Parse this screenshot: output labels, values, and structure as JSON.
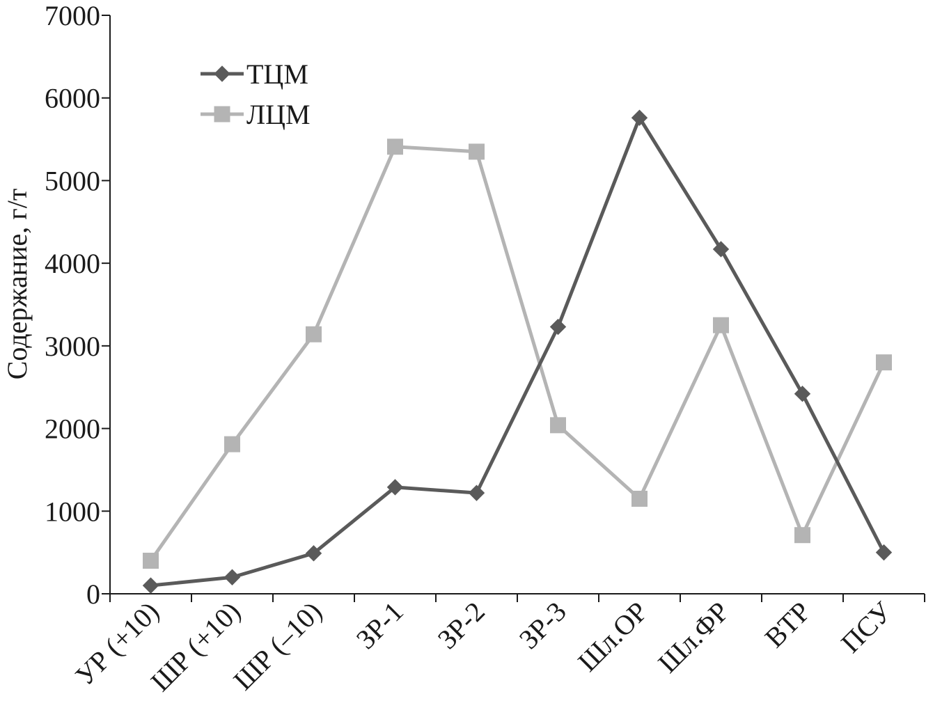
{
  "chart_data": {
    "type": "line",
    "title": "",
    "xlabel": "",
    "ylabel": "Содержание, г/т",
    "ylim": [
      0,
      7000
    ],
    "yticks": [
      0,
      1000,
      2000,
      3000,
      4000,
      5000,
      6000,
      7000
    ],
    "categories": [
      "УР (+10)",
      "ШР (+10)",
      "ШР (–10)",
      "ЗР-1",
      "ЗР-2",
      "ЗР-3",
      "Шл.ОР",
      "Шл.ФР",
      "ВТР",
      "ПСУ"
    ],
    "grid": false,
    "legend_position": "top-left",
    "series": [
      {
        "name": "ТЦМ",
        "color": "#5a5a5a",
        "marker": "diamond",
        "values": [
          100,
          200,
          490,
          1290,
          1220,
          3230,
          5760,
          4170,
          2420,
          500
        ]
      },
      {
        "name": "ЛЦМ",
        "color": "#b4b4b4",
        "marker": "square",
        "values": [
          400,
          1810,
          3140,
          5410,
          5350,
          2040,
          1150,
          3250,
          710,
          2800
        ]
      }
    ]
  }
}
